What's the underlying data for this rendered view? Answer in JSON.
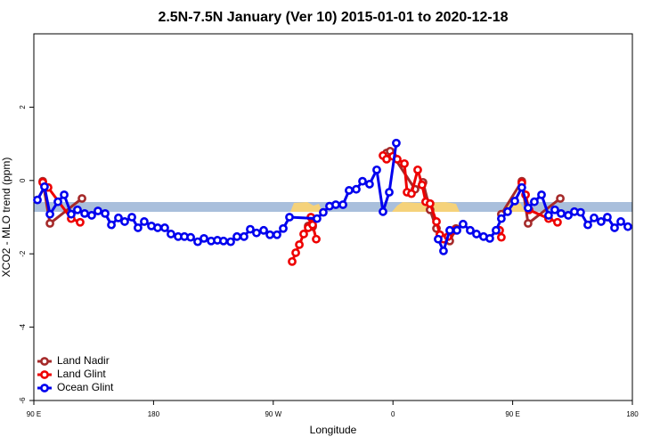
{
  "chart_data": {
    "type": "line",
    "title": "2.5N-7.5N January (Ver 10)   2015-01-01 to 2020-12-18",
    "x_label": "Longitude",
    "y_label": "XCO2 - MLO trend (ppm)",
    "xlim": [
      90,
      540
    ],
    "xticks": [
      {
        "value": 90,
        "label": "90 E"
      },
      180,
      {
        "value": 270,
        "label": "90 W"
      },
      {
        "value": 360,
        "label": "0"
      },
      {
        "value": 450,
        "label": "90 E"
      },
      {
        "value": 540,
        "label": "180"
      }
    ],
    "ylim": [
      -6,
      4
    ],
    "yticks": [
      -6,
      -4,
      -2,
      0,
      2
    ],
    "legend": "bottom-left",
    "series": [
      {
        "name": "Land Nadir",
        "color": "#a52a2a",
        "x": [
          96.7,
          102.1,
          126.2,
          null,
          296.3,
          299.6,
          null,
          355.2,
          357.9,
          376.6,
          382.6,
          387.9,
          392.7,
          398.0,
          402.7,
          407.4,
          null,
          441.5,
          456.9,
          461.6,
          485.8
        ],
        "values": [
          -0.02,
          -1.17,
          -0.49,
          null,
          -1.24,
          -1.26,
          null,
          0.75,
          0.8,
          -0.24,
          -0.05,
          -0.8,
          -1.31,
          -1.58,
          -1.65,
          -1.31,
          null,
          -0.92,
          -0.02,
          -1.17,
          -0.49
        ]
      },
      {
        "name": "Land Glint",
        "color": "#ee0000",
        "x": [
          96.7,
          100.7,
          118.1,
          124.8,
          null,
          284.2,
          286.9,
          289.6,
          292.9,
          296.3,
          298.3,
          299.6,
          302.3,
          null,
          352.5,
          355.2,
          359.9,
          363.2,
          368.6,
          370.6,
          373.9,
          378.6,
          381.9,
          384.6,
          387.9,
          392.7,
          395.3,
          398.0,
          401.4,
          406.1,
          null,
          440.2,
          441.5,
          null,
          456.9,
          459.7,
          462.3,
          477.0,
          483.7
        ],
        "values": [
          -0.05,
          -0.19,
          -1.04,
          -1.14,
          null,
          -2.21,
          -1.97,
          -1.75,
          -1.46,
          -1.29,
          -1.0,
          -1.21,
          -1.6,
          null,
          0.68,
          0.58,
          0.66,
          0.58,
          0.46,
          -0.32,
          -0.36,
          0.29,
          -0.12,
          -0.58,
          -0.63,
          -1.12,
          -1.48,
          -1.6,
          -1.53,
          -1.36,
          null,
          -1.36,
          -1.55,
          null,
          -0.07,
          -0.39,
          -0.8,
          -1.04,
          -1.14
        ]
      },
      {
        "name": "Ocean Glint",
        "color": "#0000ee",
        "x": [
          92.7,
          98.0,
          102.1,
          108.1,
          112.8,
          118.1,
          122.8,
          128.2,
          133.5,
          138.2,
          143.6,
          148.3,
          153.6,
          158.3,
          163.7,
          168.3,
          173.0,
          178.4,
          183.1,
          188.4,
          193.1,
          198.5,
          203.2,
          207.9,
          213.2,
          217.9,
          223.3,
          228.0,
          232.6,
          238.0,
          242.7,
          248.0,
          252.7,
          257.4,
          262.8,
          267.5,
          272.8,
          277.5,
          282.2,
          302.9,
          307.6,
          312.3,
          317.0,
          322.4,
          327.0,
          332.4,
          337.1,
          342.4,
          347.8,
          352.5,
          357.2,
          362.5,
          null,
          394.0,
          398.0,
          402.7,
          408.1,
          412.7,
          418.1,
          422.8,
          428.1,
          432.8,
          437.5,
          441.5,
          446.2,
          451.6,
          456.9,
          461.6,
          466.3,
          471.7,
          477.0,
          481.7,
          486.4,
          491.8,
          496.4,
          501.1,
          506.5,
          511.2,
          516.5,
          521.2,
          526.6,
          531.3,
          536.6
        ],
        "values": [
          -0.53,
          -0.17,
          -0.92,
          -0.58,
          -0.39,
          -0.92,
          -0.8,
          -0.9,
          -0.95,
          -0.83,
          -0.9,
          -1.21,
          -1.02,
          -1.12,
          -1.0,
          -1.29,
          -1.12,
          -1.24,
          -1.29,
          -1.29,
          -1.46,
          -1.53,
          -1.53,
          -1.55,
          -1.67,
          -1.58,
          -1.65,
          -1.63,
          -1.65,
          -1.67,
          -1.53,
          -1.53,
          -1.33,
          -1.43,
          -1.36,
          -1.48,
          -1.48,
          -1.31,
          -1.0,
          -1.04,
          -0.87,
          -0.7,
          -0.66,
          -0.66,
          -0.27,
          -0.24,
          -0.02,
          -0.1,
          0.29,
          -0.85,
          -0.32,
          1.02,
          null,
          -1.6,
          -1.92,
          -1.36,
          -1.36,
          -1.19,
          -1.36,
          -1.46,
          -1.53,
          -1.58,
          -1.36,
          -1.04,
          -0.85,
          -0.56,
          -0.19,
          -0.75,
          -0.58,
          -0.39,
          -0.95,
          -0.8,
          -0.9,
          -0.95,
          -0.85,
          -0.87,
          -1.21,
          -1.02,
          -1.12,
          -1.0,
          -1.29,
          -1.12,
          -1.26
        ]
      }
    ]
  }
}
